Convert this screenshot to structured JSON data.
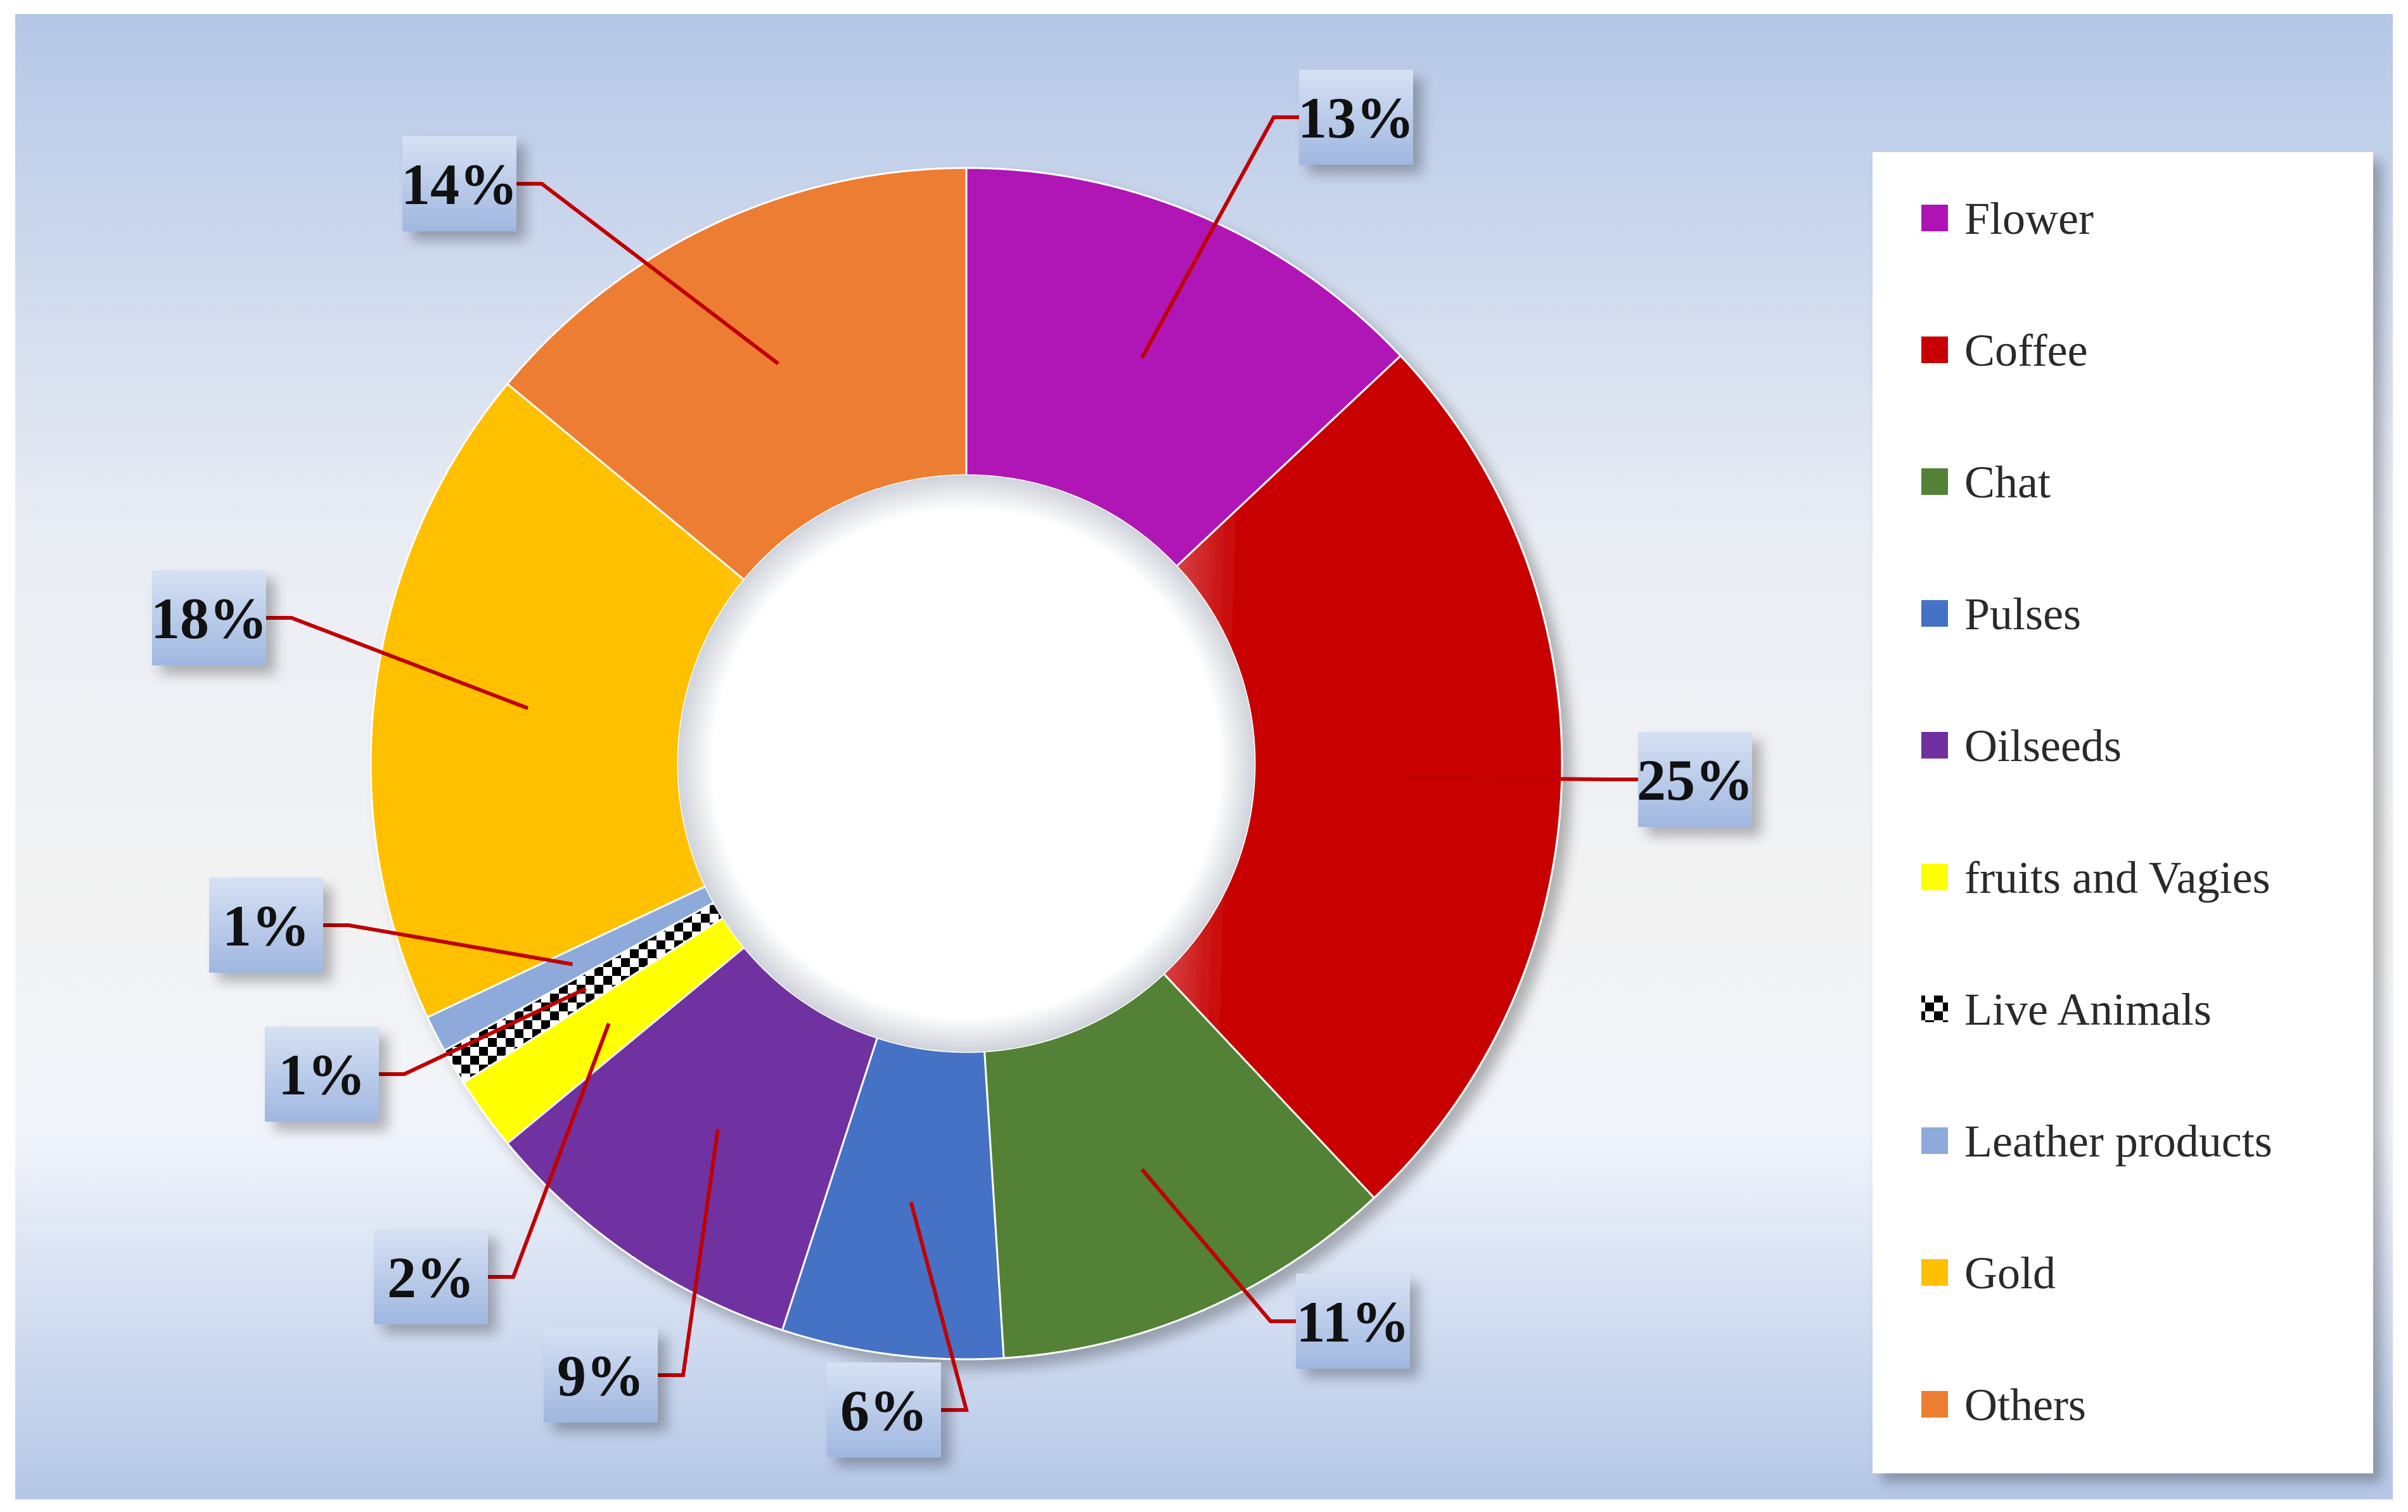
{
  "chart_data": {
    "type": "pie",
    "variant": "donut",
    "title": "",
    "legend_position": "right",
    "slices": [
      {
        "label": "Flower",
        "value": 13,
        "value_label": "13%",
        "color": "#b013b5"
      },
      {
        "label": "Coffee",
        "value": 25,
        "value_label": "25%",
        "color": "#c80000"
      },
      {
        "label": "Chat",
        "value": 11,
        "value_label": "11%",
        "color": "#538135"
      },
      {
        "label": "Pulses",
        "value": 6,
        "value_label": "6%",
        "color": "#4472c4"
      },
      {
        "label": "Oilseeds",
        "value": 9,
        "value_label": "9%",
        "color": "#7030a0"
      },
      {
        "label": "fruits and Vagies",
        "value": 2,
        "value_label": "2%",
        "color": "#ffff00"
      },
      {
        "label": "Live Animals",
        "value": 1,
        "value_label": "1%",
        "color": "#000000"
      },
      {
        "label": "Leather products",
        "value": 1,
        "value_label": "1%",
        "color": "#8eaadb"
      },
      {
        "label": "Gold",
        "value": 18,
        "value_label": "18%",
        "color": "#ffc000"
      },
      {
        "label": "Others",
        "value": 14,
        "value_label": "14%",
        "color": "#ed7d31"
      }
    ]
  }
}
